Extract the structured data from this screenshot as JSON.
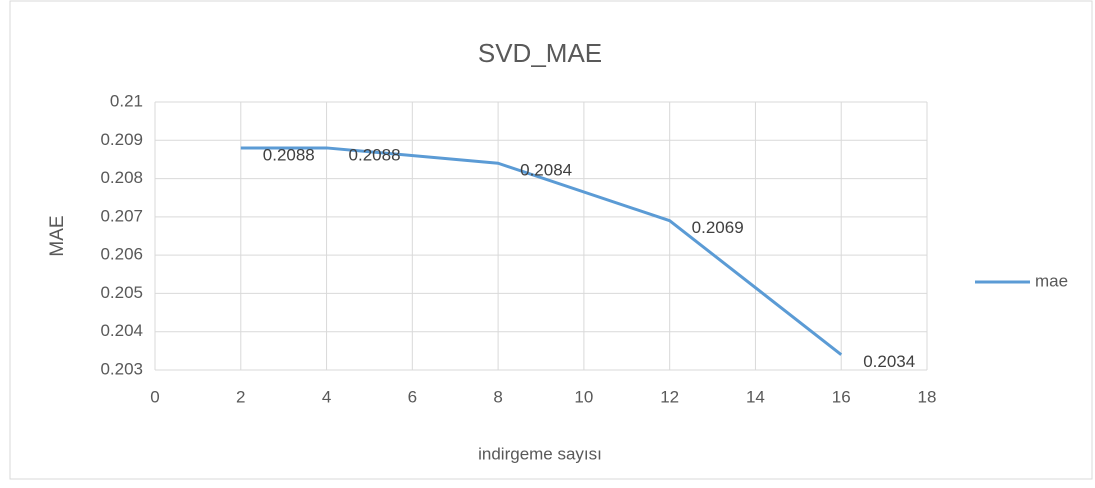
{
  "chart_data": {
    "type": "line",
    "title": "SVD_MAE",
    "x_label": "indirgeme sayısı",
    "y_label": "MAE",
    "x": [
      2,
      4,
      8,
      12,
      16
    ],
    "series": [
      {
        "name": "mae",
        "color": "#5b9bd5",
        "values": [
          0.2088,
          0.2088,
          0.2084,
          0.2069,
          0.2034
        ]
      }
    ],
    "xlim": [
      0,
      18
    ],
    "xticks": [
      0,
      2,
      4,
      6,
      8,
      10,
      12,
      14,
      16,
      18
    ],
    "ylim": [
      0.203,
      0.21
    ],
    "yticks": [
      0.203,
      0.204,
      0.205,
      0.206,
      0.207,
      0.208,
      0.209,
      0.21
    ],
    "grid": true,
    "legend": "right",
    "data_labels": true
  }
}
